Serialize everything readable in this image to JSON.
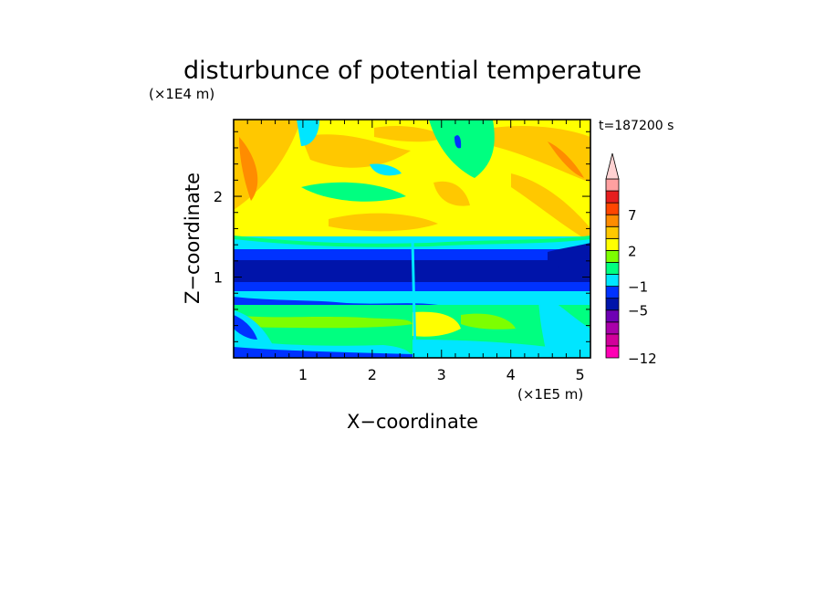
{
  "chart_data": {
    "type": "heatmap",
    "title": "disturbunce of potential temperature",
    "xlabel": "X−coordinate",
    "ylabel": "Z−coordinate",
    "x_unit": "(×1E5 m)",
    "y_unit": "(×1E4 m)",
    "time_label": "t=187200 s",
    "xlim": [
      0,
      5.15
    ],
    "ylim": [
      0,
      2.95
    ],
    "x_ticks": [
      1,
      2,
      3,
      4,
      5
    ],
    "y_ticks": [
      1,
      2
    ],
    "colorbar": {
      "levels": [
        -12,
        -11,
        -9,
        -7,
        -5,
        -3,
        -1,
        0,
        1,
        2,
        4,
        5,
        7,
        9,
        11
      ],
      "colors": [
        "#ff00b4",
        "#d2009b",
        "#aa00aa",
        "#6e00b4",
        "#0014aa",
        "#0032ff",
        "#00e6ff",
        "#00ff80",
        "#7dff00",
        "#ffff00",
        "#ffc800",
        "#ff8c00",
        "#ff4600",
        "#e61e1e",
        "#ffa0a0",
        "#ffd2d2"
      ],
      "tick_labels": [
        {
          "value": -12,
          "label": "−12"
        },
        {
          "value": -5,
          "label": "−5"
        },
        {
          "value": -1,
          "label": "−1"
        },
        {
          "value": 2,
          "label": "2"
        },
        {
          "value": 7,
          "label": "7"
        }
      ]
    },
    "grid": false
  }
}
